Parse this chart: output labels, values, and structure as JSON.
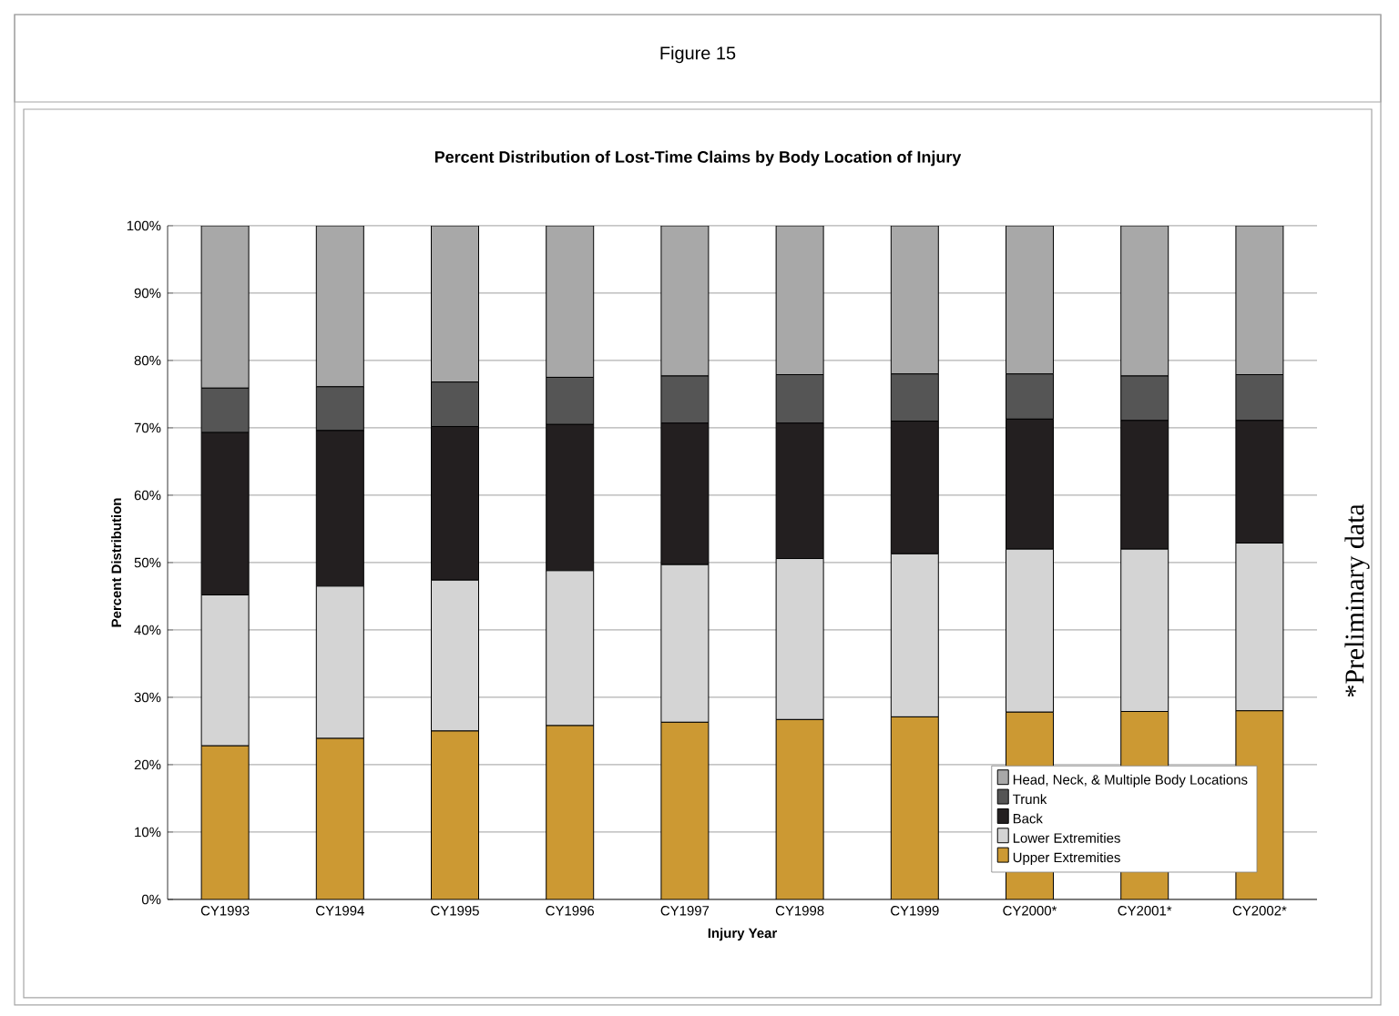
{
  "chart_data": {
    "type": "bar",
    "stacked": true,
    "title": "Figure 15",
    "subtitle": "Percent Distribution of Lost-Time Claims by Body Location of Injury",
    "xlabel": "Injury Year",
    "ylabel": "Percent Distribution",
    "annotations": [
      "*Preliminary data"
    ],
    "categories": [
      "CY1993",
      "CY1994",
      "CY1995",
      "CY1996",
      "CY1997",
      "CY1998",
      "CY1999",
      "CY2000*",
      "CY2001*",
      "CY2002*"
    ],
    "series": [
      {
        "name": "Upper Extremities",
        "color": "#cc9933",
        "values": [
          22.8,
          23.9,
          25.0,
          25.8,
          26.3,
          26.7,
          27.1,
          27.8,
          27.9,
          28.0
        ]
      },
      {
        "name": "Lower Extremities",
        "color": "#d4d4d4",
        "values": [
          22.4,
          22.6,
          22.4,
          23.0,
          23.4,
          23.9,
          24.2,
          24.2,
          24.1,
          24.9
        ]
      },
      {
        "name": "Back",
        "color": "#231f20",
        "values": [
          24.1,
          23.1,
          22.8,
          21.7,
          21.0,
          20.1,
          19.7,
          19.3,
          19.1,
          18.2
        ]
      },
      {
        "name": "Trunk",
        "color": "#555555",
        "values": [
          6.6,
          6.5,
          6.6,
          7.0,
          7.0,
          7.2,
          7.0,
          6.7,
          6.6,
          6.8
        ]
      },
      {
        "name": "Head, Neck, & Multiple Body Locations",
        "color": "#a8a8a8",
        "values": [
          24.1,
          23.9,
          23.2,
          22.5,
          22.3,
          22.1,
          22.0,
          22.0,
          22.3,
          22.1
        ]
      }
    ],
    "ylim": [
      0,
      100
    ],
    "yticks": [
      {
        "value": 0,
        "label": "0%"
      },
      {
        "value": 10,
        "label": "10%"
      },
      {
        "value": 20,
        "label": "20%"
      },
      {
        "value": 30,
        "label": "30%"
      },
      {
        "value": 40,
        "label": "40%"
      },
      {
        "value": 50,
        "label": "50%"
      },
      {
        "value": 60,
        "label": "60%"
      },
      {
        "value": 70,
        "label": "70%"
      },
      {
        "value": 80,
        "label": "80%"
      },
      {
        "value": 90,
        "label": "90%"
      },
      {
        "value": 100,
        "label": "100%"
      }
    ],
    "grid": "y",
    "legend": "bottom right"
  }
}
